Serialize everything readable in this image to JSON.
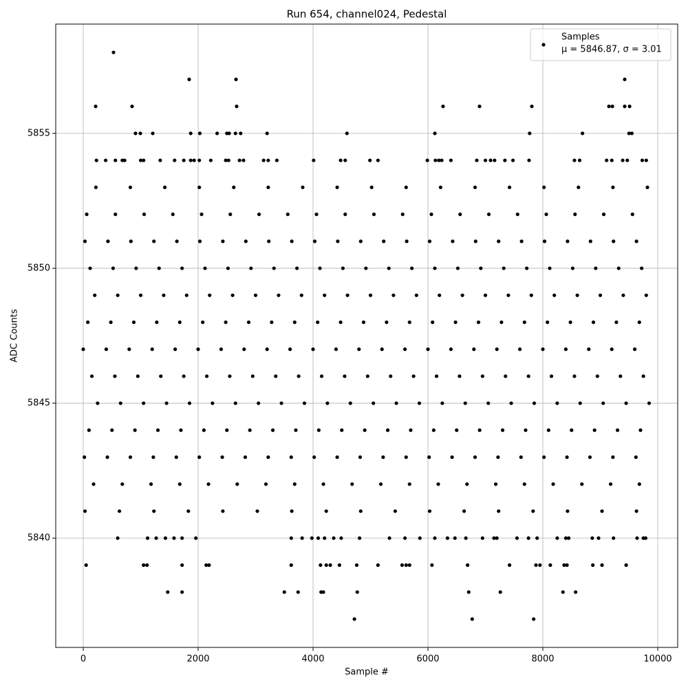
{
  "chart_data": {
    "type": "scatter",
    "title": "Run 654, channel024, Pedestal",
    "x_label": "Sample #",
    "y_label": "ADC Counts",
    "series_name": "Samples",
    "legend_note": "μ = 5846.87, σ = 3.01",
    "legend_loc": "upper right",
    "color": "#000000",
    "grid": true,
    "xlim": [
      -479,
      10347
    ],
    "ylim": [
      5835.95,
      5859.05
    ],
    "xticks": [
      0,
      2000,
      4000,
      6000,
      8000,
      10000
    ],
    "yticks": [
      5840,
      5845,
      5850,
      5855
    ],
    "x": [
      20,
      420,
      820,
      1220,
      1620,
      2020,
      2420,
      2820,
      3220,
      3620,
      4020,
      4420,
      4820,
      5220,
      5620,
      6020,
      6420,
      6820,
      7220,
      7620,
      8020,
      8420,
      8820,
      9220,
      9620,
      100,
      500,
      900,
      1300,
      1700,
      2100,
      2500,
      2900,
      3300,
      3700,
      4100,
      4500,
      4900,
      5300,
      5700,
      6100,
      6500,
      6900,
      7300,
      7700,
      8100,
      8500,
      8900,
      9300,
      9700,
      250,
      650,
      1050,
      1450,
      1850,
      2250,
      2650,
      3050,
      3450,
      3850,
      4250,
      4650,
      5050,
      5450,
      5850,
      6250,
      6650,
      7050,
      7450,
      7850,
      8250,
      8650,
      9050,
      9450,
      9850,
      150,
      550,
      950,
      1350,
      1750,
      2150,
      2550,
      2950,
      3350,
      3750,
      4150,
      4550,
      4950,
      5350,
      5750,
      6150,
      6550,
      6950,
      7350,
      7750,
      8150,
      8550,
      8950,
      9350,
      9750,
      0,
      400,
      800,
      1200,
      1600,
      2000,
      2400,
      2800,
      3200,
      3600,
      4000,
      4400,
      4800,
      5200,
      5600,
      6000,
      6400,
      6800,
      7200,
      7600,
      8000,
      8400,
      8800,
      9200,
      9600,
      80,
      480,
      880,
      1280,
      1680,
      2080,
      2480,
      2880,
      3280,
      3680,
      4080,
      4480,
      4880,
      5280,
      5680,
      6080,
      6480,
      6880,
      7280,
      7680,
      8080,
      8480,
      8880,
      9280,
      9680,
      200,
      600,
      1000,
      1400,
      1800,
      2200,
      2600,
      3000,
      3400,
      3800,
      4200,
      4600,
      5000,
      5400,
      5800,
      6200,
      6600,
      7000,
      7400,
      7800,
      8200,
      8600,
      9000,
      9400,
      9800,
      120,
      520,
      920,
      1320,
      1720,
      2120,
      2520,
      2920,
      3320,
      3720,
      4120,
      4520,
      4920,
      5320,
      5720,
      6120,
      6520,
      6920,
      7320,
      7720,
      8120,
      8520,
      8920,
      9320,
      9720,
      30,
      430,
      830,
      1230,
      1630,
      2030,
      2430,
      2830,
      3230,
      3630,
      4030,
      4430,
      4830,
      5230,
      5630,
      6030,
      6430,
      6830,
      7230,
      7630,
      8030,
      8430,
      8830,
      9230,
      9630,
      180,
      680,
      1180,
      1680,
      2180,
      2680,
      3180,
      3680,
      4180,
      4680,
      5180,
      5680,
      6180,
      6680,
      7180,
      7680,
      8180,
      8680,
      9180,
      9680,
      60,
      560,
      1060,
      1560,
      2060,
      2560,
      3060,
      3560,
      4060,
      4560,
      5060,
      5560,
      6060,
      6560,
      7060,
      7560,
      8060,
      8560,
      9060,
      9560,
      30,
      630,
      1230,
      1830,
      2430,
      3030,
      3630,
      4230,
      4830,
      5430,
      6030,
      6630,
      7230,
      7830,
      8430,
      9030,
      9630,
      220,
      820,
      1420,
      2020,
      2620,
      3220,
      3820,
      4420,
      5020,
      5620,
      6220,
      6820,
      7420,
      8020,
      8620,
      9220,
      9820,
      230,
      390,
      560,
      680,
      720,
      1000,
      1050,
      1340,
      1590,
      1750,
      1870,
      1930,
      2020,
      2220,
      2480,
      2530,
      2720,
      2790,
      3140,
      3220,
      3370,
      4010,
      4480,
      4560,
      4990,
      5130,
      5990,
      6130,
      6190,
      6240,
      6400,
      6850,
      7000,
      7090,
      7160,
      7340,
      7480,
      7760,
      8550,
      8640,
      9110,
      9200,
      9390,
      9470,
      9730,
      9800,
      600,
      1120,
      1270,
      1430,
      1580,
      1720,
      1960,
      3620,
      3810,
      3980,
      4090,
      4200,
      4360,
      4490,
      4810,
      5330,
      5600,
      5860,
      6120,
      6340,
      6470,
      6660,
      6950,
      7150,
      7200,
      7550,
      7750,
      7900,
      8250,
      8400,
      8450,
      8860,
      8970,
      9230,
      9640,
      9750,
      9790,
      527,
      1844,
      2659,
      9425,
      216,
      850,
      2670,
      6263,
      6898,
      7808,
      9150,
      9210,
      9425,
      9510,
      910,
      994,
      1210,
      1870,
      2030,
      2330,
      2500,
      2540,
      2650,
      2740,
      3200,
      4590,
      6120,
      7770,
      8690,
      9500,
      9550,
      1470,
      1720,
      3500,
      3740,
      4140,
      4180,
      4770,
      6710,
      7260,
      8350,
      8570,
      4720,
      6770,
      7840,
      50,
      1050,
      1110,
      1720,
      2140,
      2190,
      3620,
      4130,
      4230,
      4300,
      4460,
      4760,
      5130,
      5550,
      5620,
      5680,
      6070,
      6690,
      7420,
      7880,
      7950,
      8130,
      8370,
      8420,
      8870,
      9030,
      9450
    ],
    "values": [
      5843,
      5843,
      5843,
      5843,
      5843,
      5843,
      5843,
      5843,
      5843,
      5843,
      5843,
      5843,
      5843,
      5843,
      5843,
      5843,
      5843,
      5843,
      5843,
      5843,
      5843,
      5843,
      5843,
      5843,
      5843,
      5844,
      5844,
      5844,
      5844,
      5844,
      5844,
      5844,
      5844,
      5844,
      5844,
      5844,
      5844,
      5844,
      5844,
      5844,
      5844,
      5844,
      5844,
      5844,
      5844,
      5844,
      5844,
      5844,
      5844,
      5844,
      5845,
      5845,
      5845,
      5845,
      5845,
      5845,
      5845,
      5845,
      5845,
      5845,
      5845,
      5845,
      5845,
      5845,
      5845,
      5845,
      5845,
      5845,
      5845,
      5845,
      5845,
      5845,
      5845,
      5845,
      5845,
      5846,
      5846,
      5846,
      5846,
      5846,
      5846,
      5846,
      5846,
      5846,
      5846,
      5846,
      5846,
      5846,
      5846,
      5846,
      5846,
      5846,
      5846,
      5846,
      5846,
      5846,
      5846,
      5846,
      5846,
      5846,
      5847,
      5847,
      5847,
      5847,
      5847,
      5847,
      5847,
      5847,
      5847,
      5847,
      5847,
      5847,
      5847,
      5847,
      5847,
      5847,
      5847,
      5847,
      5847,
      5847,
      5847,
      5847,
      5847,
      5847,
      5847,
      5848,
      5848,
      5848,
      5848,
      5848,
      5848,
      5848,
      5848,
      5848,
      5848,
      5848,
      5848,
      5848,
      5848,
      5848,
      5848,
      5848,
      5848,
      5848,
      5848,
      5848,
      5848,
      5848,
      5848,
      5848,
      5849,
      5849,
      5849,
      5849,
      5849,
      5849,
      5849,
      5849,
      5849,
      5849,
      5849,
      5849,
      5849,
      5849,
      5849,
      5849,
      5849,
      5849,
      5849,
      5849,
      5849,
      5849,
      5849,
      5849,
      5849,
      5850,
      5850,
      5850,
      5850,
      5850,
      5850,
      5850,
      5850,
      5850,
      5850,
      5850,
      5850,
      5850,
      5850,
      5850,
      5850,
      5850,
      5850,
      5850,
      5850,
      5850,
      5850,
      5850,
      5850,
      5850,
      5851,
      5851,
      5851,
      5851,
      5851,
      5851,
      5851,
      5851,
      5851,
      5851,
      5851,
      5851,
      5851,
      5851,
      5851,
      5851,
      5851,
      5851,
      5851,
      5851,
      5851,
      5851,
      5851,
      5851,
      5851,
      5842,
      5842,
      5842,
      5842,
      5842,
      5842,
      5842,
      5842,
      5842,
      5842,
      5842,
      5842,
      5842,
      5842,
      5842,
      5842,
      5842,
      5842,
      5842,
      5842,
      5852,
      5852,
      5852,
      5852,
      5852,
      5852,
      5852,
      5852,
      5852,
      5852,
      5852,
      5852,
      5852,
      5852,
      5852,
      5852,
      5852,
      5852,
      5852,
      5852,
      5841,
      5841,
      5841,
      5841,
      5841,
      5841,
      5841,
      5841,
      5841,
      5841,
      5841,
      5841,
      5841,
      5841,
      5841,
      5841,
      5841,
      5853,
      5853,
      5853,
      5853,
      5853,
      5853,
      5853,
      5853,
      5853,
      5853,
      5853,
      5853,
      5853,
      5853,
      5853,
      5853,
      5853,
      5854,
      5854,
      5854,
      5854,
      5854,
      5854,
      5854,
      5854,
      5854,
      5854,
      5854,
      5854,
      5854,
      5854,
      5854,
      5854,
      5854,
      5854,
      5854,
      5854,
      5854,
      5854,
      5854,
      5854,
      5854,
      5854,
      5854,
      5854,
      5854,
      5854,
      5854,
      5854,
      5854,
      5854,
      5854,
      5854,
      5854,
      5854,
      5854,
      5854,
      5854,
      5854,
      5854,
      5854,
      5854,
      5854,
      5840,
      5840,
      5840,
      5840,
      5840,
      5840,
      5840,
      5840,
      5840,
      5840,
      5840,
      5840,
      5840,
      5840,
      5840,
      5840,
      5840,
      5840,
      5840,
      5840,
      5840,
      5840,
      5840,
      5840,
      5840,
      5840,
      5840,
      5840,
      5840,
      5840,
      5840,
      5840,
      5840,
      5840,
      5840,
      5840,
      5840,
      5858,
      5857,
      5857,
      5857,
      5856,
      5856,
      5856,
      5856,
      5856,
      5856,
      5856,
      5856,
      5856,
      5856,
      5855,
      5855,
      5855,
      5855,
      5855,
      5855,
      5855,
      5855,
      5855,
      5855,
      5855,
      5855,
      5855,
      5855,
      5855,
      5855,
      5855,
      5838,
      5838,
      5838,
      5838,
      5838,
      5838,
      5838,
      5838,
      5838,
      5838,
      5838,
      5837,
      5837,
      5837,
      5839,
      5839,
      5839,
      5839,
      5839,
      5839,
      5839,
      5839,
      5839,
      5839,
      5839,
      5839,
      5839,
      5839,
      5839,
      5839,
      5839,
      5839,
      5839,
      5839,
      5839,
      5839,
      5839,
      5839,
      5839,
      5839,
      5839
    ]
  }
}
